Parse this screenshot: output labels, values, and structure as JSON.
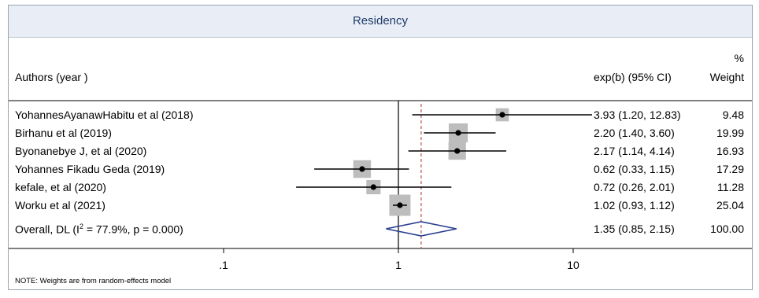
{
  "chart_data": {
    "type": "forest",
    "title": "Residency",
    "columns": {
      "study": "Authors (year )",
      "effect": "exp(b) (95% CI)",
      "weight_top": "%",
      "weight": "Weight"
    },
    "studies": [
      {
        "label": "YohannesAyanawHabitu et al (2018)",
        "est": 3.93,
        "lo": 1.2,
        "hi": 12.83,
        "ci_text": "3.93 (1.20, 12.83)",
        "weight": 9.48,
        "weight_text": "9.48"
      },
      {
        "label": "Birhanu et al (2019)",
        "est": 2.2,
        "lo": 1.4,
        "hi": 3.6,
        "ci_text": "2.20 (1.40, 3.60)",
        "weight": 19.99,
        "weight_text": "19.99"
      },
      {
        "label": "Byonanebye J, et al (2020)",
        "est": 2.17,
        "lo": 1.14,
        "hi": 4.14,
        "ci_text": "2.17 (1.14, 4.14)",
        "weight": 16.93,
        "weight_text": "16.93"
      },
      {
        "label": "Yohannes Fikadu Geda (2019)",
        "est": 0.62,
        "lo": 0.33,
        "hi": 1.15,
        "ci_text": "0.62 (0.33, 1.15)",
        "weight": 17.29,
        "weight_text": "17.29"
      },
      {
        "label": "kefale, et al (2020)",
        "est": 0.72,
        "lo": 0.26,
        "hi": 2.01,
        "ci_text": "0.72 (0.26, 2.01)",
        "weight": 11.28,
        "weight_text": "11.28"
      },
      {
        "label": "Worku et al (2021)",
        "est": 1.02,
        "lo": 0.93,
        "hi": 1.12,
        "ci_text": "1.02 (0.93, 1.12)",
        "weight": 25.04,
        "weight_text": "25.04"
      }
    ],
    "overall": {
      "label_prefix": "Overall, DL (I",
      "label_sup": "2",
      "label_suffix": " = 77.9%, p = 0.000)",
      "est": 1.35,
      "lo": 0.85,
      "hi": 2.15,
      "ci_text": "1.35 (0.85, 2.15)",
      "weight_text": "100.00"
    },
    "x_scale": "log",
    "xlim": [
      0.07,
      16
    ],
    "x_ticks": [
      {
        "value": 0.1,
        "label": ".1"
      },
      {
        "value": 1,
        "label": "1"
      },
      {
        "value": 10,
        "label": "10"
      }
    ],
    "null_line": 1,
    "note": "NOTE: Weights are from random-effects model",
    "colors": {
      "title": "#1f3a6b",
      "overall_line": "#b03030",
      "diamond": "#2a3f8f",
      "weight_box": "#bdbdbd"
    }
  }
}
